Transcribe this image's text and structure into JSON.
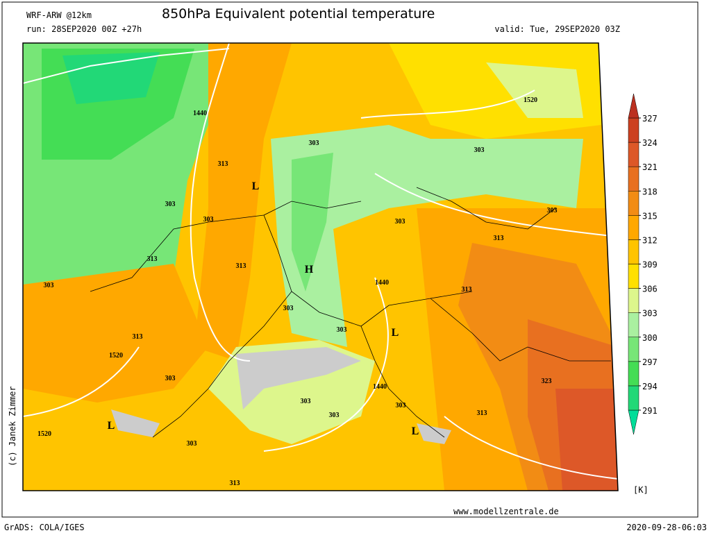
{
  "header": {
    "model": "WRF-ARW @12km",
    "title": "850hPa Equivalent potential temperature",
    "run": "run: 28SEP2020 00Z +27h",
    "valid": "valid: Tue, 29SEP2020 03Z"
  },
  "map": {
    "copyright": "(c) Janek Zimmer",
    "labels": [
      1440,
      1520,
      313,
      "L",
      303,
      303,
      303,
      303,
      303,
      303,
      313,
      313,
      313,
      "H",
      303,
      1440,
      313,
      303,
      303,
      "L",
      313,
      1520,
      303,
      323,
      1440,
      303,
      303,
      303,
      313,
      "L",
      1520,
      "L",
      303,
      313
    ]
  },
  "colorbar": {
    "unit": "[K]",
    "levels": [
      291,
      294,
      297,
      300,
      303,
      306,
      309,
      312,
      315,
      318,
      321,
      324,
      327
    ],
    "colors": [
      "#00dd99",
      "#22d877",
      "#44dd55",
      "#77e677",
      "#aaf0a0",
      "#ddf68c",
      "#ffe000",
      "#ffc400",
      "#ffa800",
      "#f28c14",
      "#e87020",
      "#dd5828",
      "#cc4020",
      "#bb3020"
    ]
  },
  "footer": {
    "source": "GrADS: COLA/IGES",
    "site": "www.modellzentrale.de",
    "timestamp": "2020-09-28-06:03"
  }
}
